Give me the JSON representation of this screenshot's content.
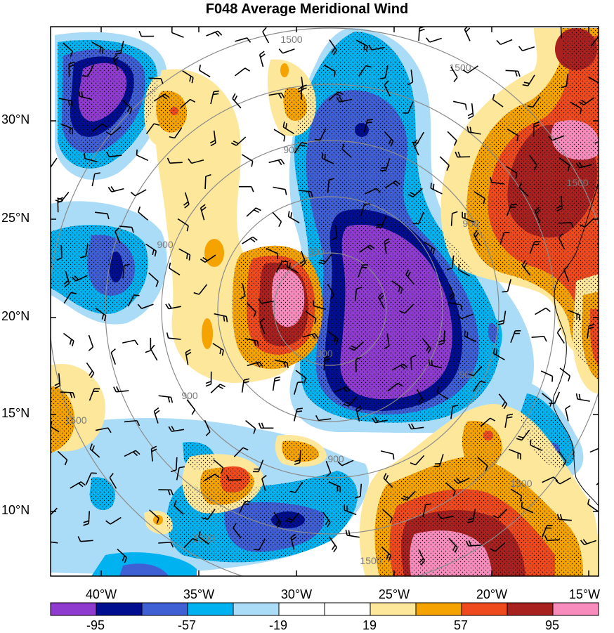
{
  "title": "F048 Average Meridional Wind",
  "lat_labels": [
    "30°N",
    "25°N",
    "20°N",
    "15°N",
    "10°N"
  ],
  "lon_labels": [
    "40°W",
    "35°W",
    "30°W",
    "25°W",
    "20°W",
    "15°W"
  ],
  "range_ring_labels": [
    "300",
    "900",
    "1500"
  ],
  "colorbar": {
    "colors": [
      "#8f3bd0",
      "#000f8f",
      "#3f5fd5",
      "#00b3f0",
      "#abdcf7",
      "#ffffff",
      "#ffffff",
      "#fde79a",
      "#f5a300",
      "#ef4a1d",
      "#a8211f",
      "#f78cbd"
    ],
    "labels": [
      "-95",
      "-57",
      "-19",
      "19",
      "57",
      "95"
    ]
  },
  "colors": {
    "ring": "#8c8c8c",
    "barb": "#000000",
    "coast": "#000000"
  }
}
